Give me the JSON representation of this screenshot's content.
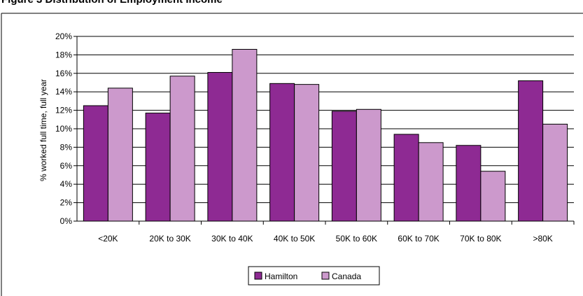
{
  "chart_data": {
    "type": "bar",
    "title": "Figure 3 Distribution of Employment Income",
    "ylabel": "% worked full time, full year",
    "xlabel": "",
    "categories": [
      "<20K",
      "20K to 30K",
      "30K to 40K",
      "40K to 50K",
      "50K to 60K",
      "60K to 70K",
      "70K to 80K",
      ">80K"
    ],
    "series": [
      {
        "name": "Hamilton",
        "values": [
          12.5,
          11.7,
          16.1,
          14.9,
          11.9,
          9.4,
          8.2,
          15.2
        ],
        "color": "#8e2a93"
      },
      {
        "name": "Canada",
        "values": [
          14.4,
          15.7,
          18.6,
          14.8,
          12.1,
          8.5,
          5.4,
          10.5
        ],
        "color": "#cc99cc"
      }
    ],
    "ylim": [
      0,
      20
    ],
    "yticks": [
      "0%",
      "2%",
      "4%",
      "6%",
      "8%",
      "10%",
      "12%",
      "14%",
      "16%",
      "18%",
      "20%"
    ],
    "grid": true,
    "legend": "bottom-center"
  }
}
